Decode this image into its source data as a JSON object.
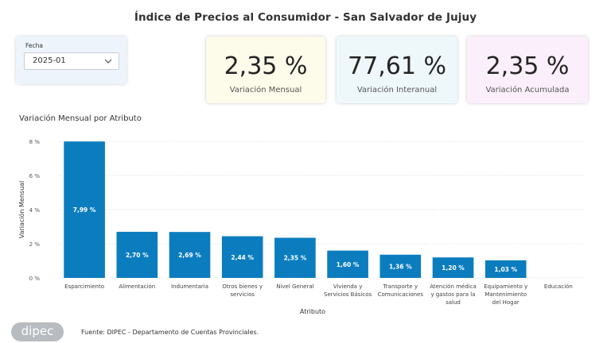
{
  "header": {
    "title": "Índice de Precios al Consumidor - San Salvador de Jujuy"
  },
  "filter": {
    "label": "Fecha",
    "value": "2025-01",
    "icon": "chevron-down-icon"
  },
  "kpis": [
    {
      "value": "2,35 %",
      "label": "Variación Mensual",
      "bg": "#fdfbea"
    },
    {
      "value": "77,61 %",
      "label": "Variación Interanual",
      "bg": "#eef8fb"
    },
    {
      "value": "2,35 %",
      "label": "Variación Acumulada",
      "bg": "#fbeffb"
    }
  ],
  "chart": {
    "title": "Variación Mensual por Atributo"
  },
  "chart_data": {
    "type": "bar",
    "title": "Variación Mensual por Atributo",
    "xlabel": "Atributo",
    "ylabel": "Variación Mensual",
    "ylim": [
      0,
      8
    ],
    "yticks": [
      "0 %",
      "2 %",
      "4 %",
      "6 %",
      "8 %"
    ],
    "ytick_values": [
      0,
      2,
      4,
      6,
      8
    ],
    "grid": true,
    "bar_color": "#0b7dbf",
    "categories": [
      [
        "Esparcimiento"
      ],
      [
        "Alimentación"
      ],
      [
        "Indumentaria"
      ],
      [
        "Otros bienes y",
        "servicios"
      ],
      [
        "Nivel General"
      ],
      [
        "Vivienda y",
        "Servicios Básicos"
      ],
      [
        "Transporte y",
        "Comunicaciones"
      ],
      [
        "Atención médica",
        "y gastos para la",
        "salud"
      ],
      [
        "Equipamiento y",
        "Mantenimiento",
        "del Hogar"
      ],
      [
        "Educación"
      ]
    ],
    "values": [
      7.99,
      2.7,
      2.69,
      2.44,
      2.35,
      1.6,
      1.36,
      1.2,
      1.03,
      null
    ],
    "data_labels": [
      "7,99 %",
      "2,70 %",
      "2,69 %",
      "2,44 %",
      "2,35 %",
      "1,60 %",
      "1,36 %",
      "1,20 %",
      "1,03 %",
      ""
    ]
  },
  "footer": {
    "logo": "dipec",
    "source": "Fuente: DIPEC - Departamento de Cuentas Provinciales."
  }
}
